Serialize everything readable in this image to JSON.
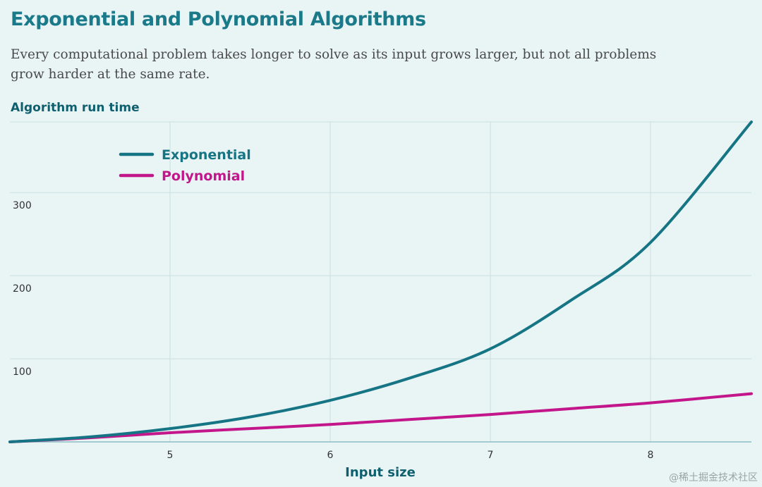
{
  "header": {
    "title": "Exponential and Polynomial Algorithms",
    "subtitle": "Every computational problem takes longer to solve as its input grows larger, but not all problems grow harder at the same rate."
  },
  "chart_data": {
    "type": "line",
    "title": "Exponential and Polynomial Algorithms",
    "ylabel": "Algorithm run time",
    "xlabel": "Input size",
    "xlim": [
      4,
      8.63
    ],
    "ylim": [
      0,
      385
    ],
    "x_ticks": [
      5,
      6,
      7,
      8
    ],
    "x_tick_labels": [
      "5",
      "6",
      "7",
      "8"
    ],
    "y_ticks": [
      100,
      200,
      300
    ],
    "y_tick_labels": [
      "100",
      "200",
      "300"
    ],
    "grid": true,
    "legend_position": "top-left",
    "series": [
      {
        "name": "Exponential",
        "color": "#167584",
        "x": [
          4,
          4.5,
          5,
          5.5,
          6,
          6.5,
          7,
          7.5,
          8,
          8.63
        ],
        "y": [
          0,
          6,
          16,
          30,
          50,
          77,
          112,
          170,
          240,
          385
        ]
      },
      {
        "name": "Polynomial",
        "color": "#c2168a",
        "x": [
          4,
          4.5,
          5,
          5.5,
          6,
          6.5,
          7,
          7.5,
          8,
          8.63
        ],
        "y": [
          0,
          5,
          11,
          16,
          21,
          27,
          33,
          40,
          47,
          58
        ]
      }
    ]
  },
  "watermark": "@稀土掘金技术社区"
}
